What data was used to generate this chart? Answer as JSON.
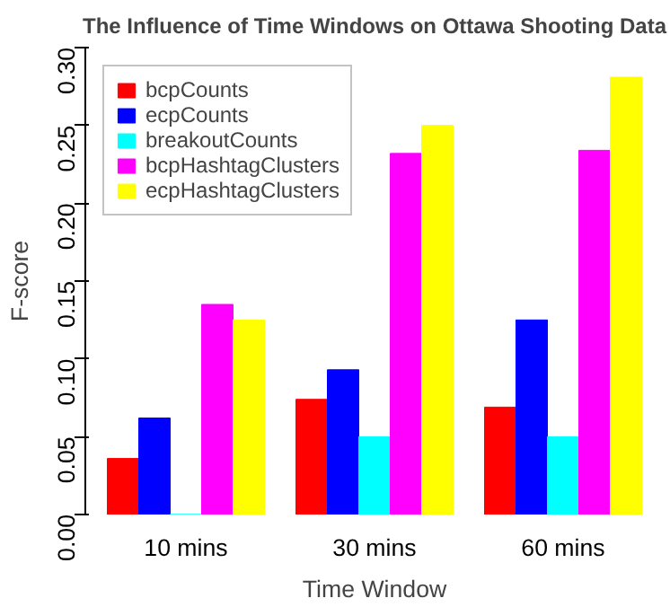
{
  "chart_data": {
    "type": "bar",
    "title": "The Influence of Time Windows on Ottawa Shooting Data",
    "xlabel": "Time Window",
    "ylabel": "F-score",
    "categories": [
      "10 mins",
      "30 mins",
      "60 mins"
    ],
    "series": [
      {
        "name": "bcpCounts",
        "color": "#ff0000",
        "values": [
          0.036,
          0.074,
          0.069
        ]
      },
      {
        "name": "ecpCounts",
        "color": "#0000ff",
        "values": [
          0.062,
          0.093,
          0.125
        ]
      },
      {
        "name": "breakoutCounts",
        "color": "#00ffff",
        "values": [
          0,
          0.05,
          0.05
        ]
      },
      {
        "name": "bcpHashtagClusters",
        "color": "#ff00ff",
        "values": [
          0.135,
          0.232,
          0.234
        ]
      },
      {
        "name": "ecpHashtagClusters",
        "color": "#ffff00",
        "values": [
          0.125,
          0.25,
          0.281
        ]
      }
    ],
    "ylim": [
      0,
      0.3
    ],
    "yticks": [
      {
        "value": 0,
        "label": "0.00"
      },
      {
        "value": 0.05,
        "label": "0.05"
      },
      {
        "value": 0.1,
        "label": "0.10"
      },
      {
        "value": 0.15,
        "label": "0.15"
      },
      {
        "value": 0.2,
        "label": "0.20"
      },
      {
        "value": 0.25,
        "label": "0.25"
      },
      {
        "value": 0.3,
        "label": "0.30"
      }
    ],
    "grid": false,
    "legend": "top left"
  }
}
